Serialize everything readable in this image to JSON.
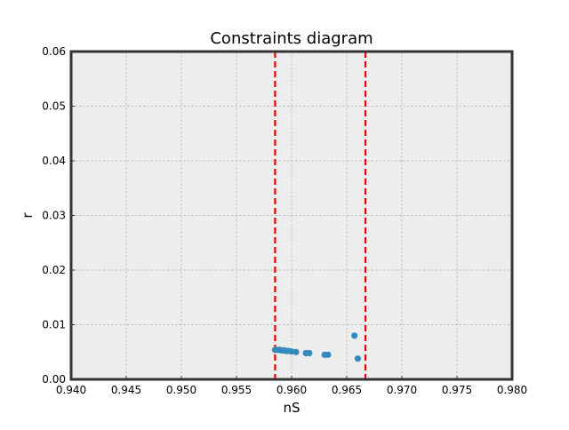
{
  "chart_data": {
    "type": "scatter",
    "title": "Constraints diagram",
    "xlabel": "nS",
    "ylabel": "r",
    "xlim": [
      0.94,
      0.98
    ],
    "ylim": [
      0.0,
      0.06
    ],
    "x_ticks": [
      0.94,
      0.945,
      0.95,
      0.955,
      0.96,
      0.965,
      0.97,
      0.975,
      0.98
    ],
    "x_tick_labels": [
      "0.940",
      "0.945",
      "0.950",
      "0.955",
      "0.960",
      "0.965",
      "0.970",
      "0.975",
      "0.980"
    ],
    "y_ticks": [
      0.0,
      0.01,
      0.02,
      0.03,
      0.04,
      0.05,
      0.06
    ],
    "y_tick_labels": [
      "0.00",
      "0.01",
      "0.02",
      "0.03",
      "0.04",
      "0.05",
      "0.06"
    ],
    "grid": true,
    "background_color": "#ededed",
    "point_color": "#348abd",
    "vline_color": "#ee0000",
    "vlines": [
      0.9585,
      0.9667
    ],
    "series": [
      {
        "x": [
          0.9585,
          0.9587,
          0.9589,
          0.9591,
          0.9593,
          0.9595,
          0.9597,
          0.96,
          0.9604,
          0.9613,
          0.9616,
          0.963,
          0.9633,
          0.9657,
          0.966
        ],
        "y": [
          0.0054,
          0.0054,
          0.0054,
          0.0053,
          0.0053,
          0.0052,
          0.0052,
          0.0051,
          0.005,
          0.0048,
          0.0048,
          0.0045,
          0.0045,
          0.008,
          0.0038
        ]
      }
    ]
  }
}
